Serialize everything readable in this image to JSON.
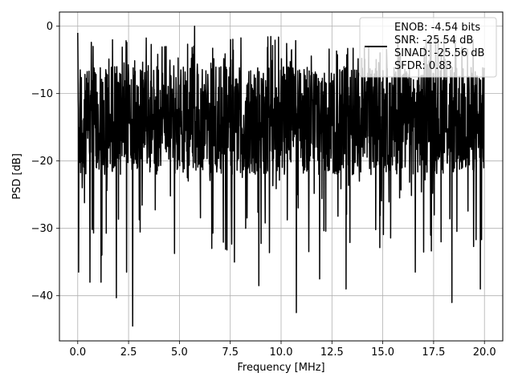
{
  "chart_data": {
    "type": "line",
    "xlabel": "Frequency [MHz]",
    "ylabel": "PSD [dB]",
    "xlim": [
      -0.9,
      20.9
    ],
    "ylim": [
      -46.7,
      2.1
    ],
    "xticks": [
      0.0,
      2.5,
      5.0,
      7.5,
      10.0,
      12.5,
      15.0,
      17.5,
      20.0
    ],
    "xtick_labels": [
      "0.0",
      "2.5",
      "5.0",
      "7.5",
      "10.0",
      "12.5",
      "15.0",
      "17.5",
      "20.0"
    ],
    "yticks": [
      0,
      -10,
      -20,
      -30,
      -40
    ],
    "ytick_labels": [
      "0",
      "−10",
      "−20",
      "−30",
      "−40"
    ],
    "grid": true,
    "legend_position": "top-right",
    "legend_entries": [
      "ENOB: -4.54 bits",
      "SNR: -25.54 dB",
      "SINAD: -25.56 dB",
      "SFDR: 0.83"
    ],
    "line_color": "#000000",
    "series": [
      {
        "x_start": 0.0,
        "x_end": 20.0,
        "typical_range": [
          -22,
          -6
        ],
        "min_value": -44.5,
        "max_value": 0.0,
        "notable_points": [
          {
            "x": 0.0,
            "y": -1.0
          },
          {
            "x": 0.05,
            "y": -36.5
          },
          {
            "x": 0.6,
            "y": -38.0
          },
          {
            "x": 1.15,
            "y": -38.0
          },
          {
            "x": 1.9,
            "y": -40.3
          },
          {
            "x": 2.4,
            "y": -36.5
          },
          {
            "x": 2.7,
            "y": -44.5
          },
          {
            "x": 5.75,
            "y": 0.0
          },
          {
            "x": 7.7,
            "y": -35.0
          },
          {
            "x": 8.9,
            "y": -38.5
          },
          {
            "x": 10.75,
            "y": -42.5
          },
          {
            "x": 11.9,
            "y": -37.5
          },
          {
            "x": 13.2,
            "y": -39.0
          },
          {
            "x": 16.6,
            "y": -36.5
          },
          {
            "x": 18.4,
            "y": -41.0
          },
          {
            "x": 19.8,
            "y": -39.0
          }
        ]
      }
    ]
  }
}
